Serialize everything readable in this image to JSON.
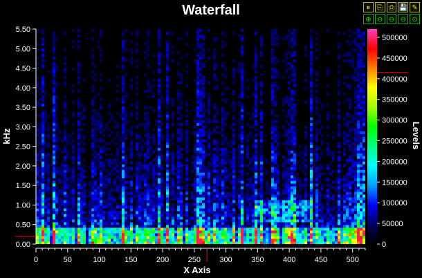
{
  "toolbar": {
    "buttons": [
      {
        "name": "pause-icon",
        "glyph": "⏸"
      },
      {
        "name": "copy-icon",
        "glyph": "⎘"
      },
      {
        "name": "print-icon",
        "glyph": "⎙"
      },
      {
        "name": "save-icon",
        "glyph": "💾"
      },
      {
        "name": "settings-icon",
        "glyph": "✎"
      },
      {
        "name": "zoom-in-icon",
        "glyph": "⊕"
      },
      {
        "name": "zoom-out-icon",
        "glyph": "⊖"
      },
      {
        "name": "zoom-x-icon",
        "glyph": "⊖"
      },
      {
        "name": "zoom-y-icon",
        "glyph": "⊖"
      },
      {
        "name": "zoom-reset-icon",
        "glyph": "⊙"
      }
    ]
  },
  "chart_data": {
    "type": "heatmap",
    "title": "Waterfall",
    "xlabel": "X Axis",
    "ylabel": "kHz",
    "colorbar_label": "Levels",
    "xlim": [
      0,
      520
    ],
    "ylim": [
      0,
      5.5
    ],
    "x_ticks": [
      0,
      50,
      100,
      150,
      200,
      250,
      300,
      350,
      400,
      450,
      500
    ],
    "y_ticks": [
      "0.00",
      "0.50",
      "1.00",
      "1.50",
      "2.00",
      "2.50",
      "3.00",
      "3.50",
      "4.00",
      "4.50",
      "5.00",
      "5.50"
    ],
    "colorbar_range": [
      0,
      520000
    ],
    "colorbar_ticks": [
      0,
      50000,
      100000,
      150000,
      200000,
      250000,
      300000,
      350000,
      400000,
      450000,
      500000
    ],
    "colorscale": [
      "#000000",
      "#000060",
      "#0000ff",
      "#00a0ff",
      "#00ffff",
      "#00ff80",
      "#00ff00",
      "#a0ff00",
      "#ffff00",
      "#ff8000",
      "#ff0000",
      "#ff40c0"
    ],
    "cursor": {
      "x": 270,
      "y": 0.2,
      "level": 415000,
      "color": "#ff0000"
    },
    "grid": false,
    "background": "#000000"
  }
}
